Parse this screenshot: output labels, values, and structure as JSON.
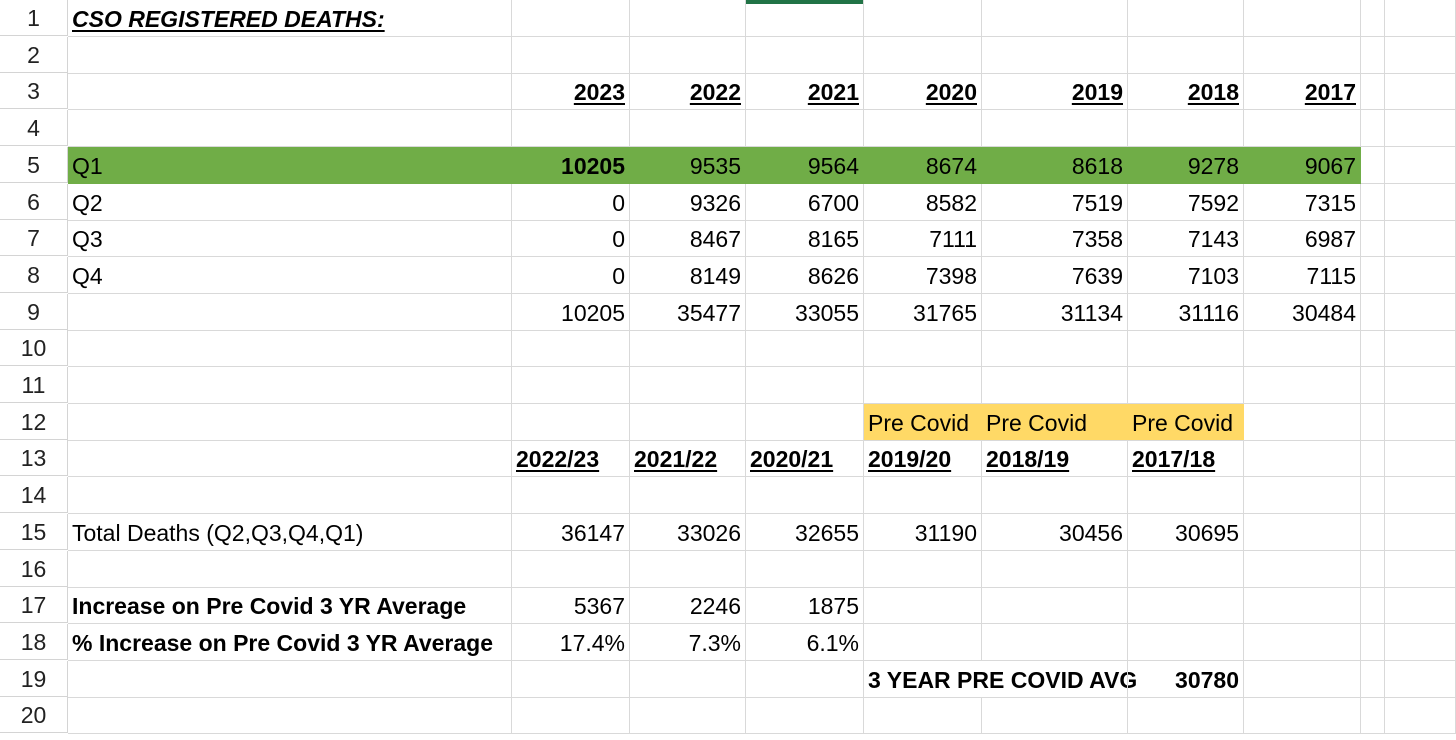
{
  "title": "CSO REGISTERED DEATHS:",
  "row_numbers": [
    "1",
    "2",
    "3",
    "4",
    "5",
    "6",
    "7",
    "8",
    "9",
    "10",
    "11",
    "12",
    "13",
    "14",
    "15",
    "16",
    "17",
    "18",
    "19",
    "20"
  ],
  "years": [
    "2023",
    "2022",
    "2021",
    "2020",
    "2019",
    "2018",
    "2017"
  ],
  "quarters": [
    {
      "label": "Q1",
      "values": [
        "10205",
        "9535",
        "9564",
        "8674",
        "8618",
        "9278",
        "9067"
      ]
    },
    {
      "label": "Q2",
      "values": [
        "0",
        "9326",
        "6700",
        "8582",
        "7519",
        "7592",
        "7315"
      ]
    },
    {
      "label": "Q3",
      "values": [
        "0",
        "8467",
        "8165",
        "7111",
        "7358",
        "7143",
        "6987"
      ]
    },
    {
      "label": "Q4",
      "values": [
        "0",
        "8149",
        "8626",
        "7398",
        "7639",
        "7103",
        "7115"
      ]
    }
  ],
  "totals": [
    "10205",
    "35477",
    "33055",
    "31765",
    "31134",
    "31116",
    "30484"
  ],
  "pre_covid_label": "Pre Covid",
  "periods": [
    "2022/23",
    "2021/22",
    "2020/21",
    "2019/20",
    "2018/19",
    "2017/18"
  ],
  "total_deaths": {
    "label": "Total Deaths (Q2,Q3,Q4,Q1)",
    "values": [
      "36147",
      "33026",
      "32655",
      "31190",
      "30456",
      "30695"
    ]
  },
  "increase": {
    "label": "Increase on Pre Covid 3 YR Average",
    "values": [
      "5367",
      "2246",
      "1875"
    ]
  },
  "pct_increase": {
    "label": "% Increase on Pre Covid 3 YR Average",
    "values": [
      "17.4%",
      "7.3%",
      "6.1%"
    ]
  },
  "avg": {
    "label": "3 YEAR PRE COVID AVG",
    "value": "30780"
  },
  "colors": {
    "highlight_green": "#70ad47",
    "highlight_yellow": "#ffd966",
    "gridline": "#d9d9d9",
    "selection": "#217346"
  }
}
